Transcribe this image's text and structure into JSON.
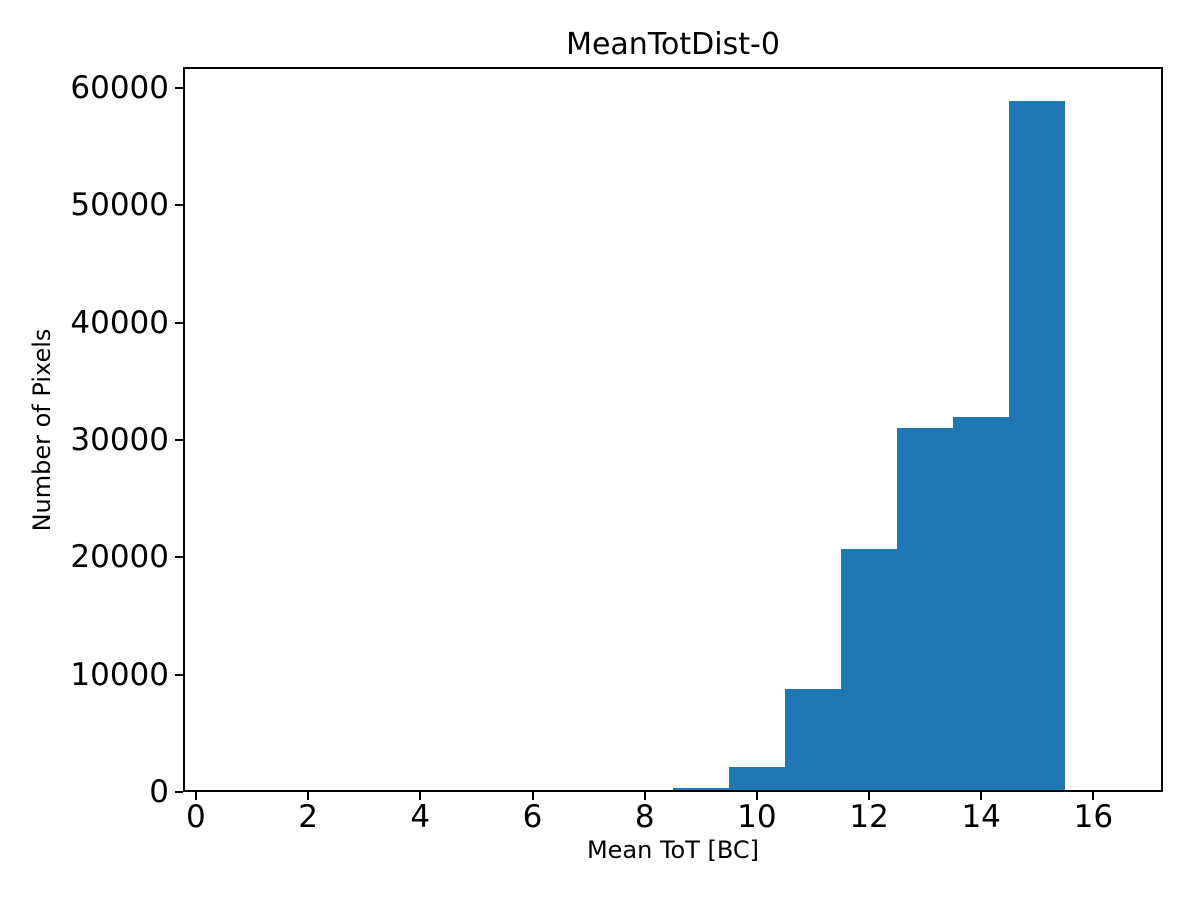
{
  "chart_data": {
    "type": "bar",
    "title": "MeanTotDist-0",
    "xlabel": "Mean ToT [BC]",
    "ylabel": "Number of Pixels",
    "bar_color": "#1f77b4",
    "background_color": "#ffffff",
    "axis_color": "#000000",
    "grid": false,
    "legend": null,
    "xlim": [
      -0.23,
      17.24
    ],
    "ylim": [
      0,
      61800
    ],
    "xticks": [
      0,
      2,
      4,
      6,
      8,
      10,
      12,
      14,
      16
    ],
    "yticks": [
      0,
      10000,
      20000,
      30000,
      40000,
      50000,
      60000
    ],
    "bin_width": 1,
    "bins": [
      {
        "x0": 8.5,
        "x1": 9.5,
        "center": 9,
        "count": 350
      },
      {
        "x0": 9.5,
        "x1": 10.5,
        "center": 10,
        "count": 2100
      },
      {
        "x0": 10.5,
        "x1": 11.5,
        "center": 11,
        "count": 8800
      },
      {
        "x0": 11.5,
        "x1": 12.5,
        "center": 12,
        "count": 20700
      },
      {
        "x0": 12.5,
        "x1": 13.5,
        "center": 13,
        "count": 31000
      },
      {
        "x0": 13.5,
        "x1": 14.5,
        "center": 14,
        "count": 32000
      },
      {
        "x0": 14.5,
        "x1": 15.5,
        "center": 15,
        "count": 58900
      }
    ]
  }
}
